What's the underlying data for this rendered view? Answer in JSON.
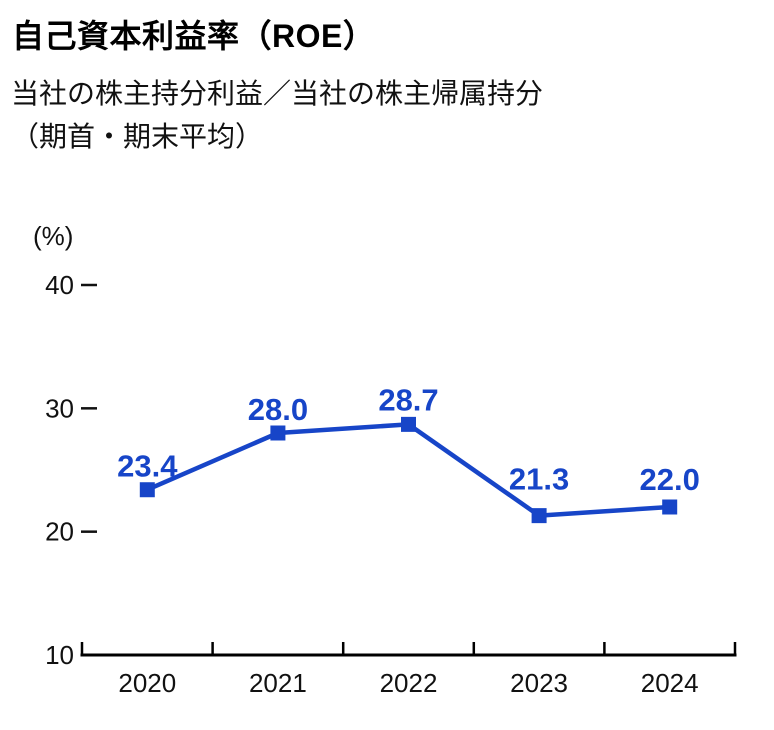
{
  "page": {
    "title": "自己資本利益率（ROE）",
    "subtitle_line1": "当社の株主持分利益／当社の株主帰属持分",
    "subtitle_line2": "（期首・期末平均）"
  },
  "chart_data": {
    "type": "line",
    "title": "自己資本利益率（ROE）",
    "subtitle": "当社の株主持分利益／当社の株主帰属持分（期首・期末平均）",
    "categories": [
      "2020",
      "2021",
      "2022",
      "2023",
      "2024"
    ],
    "series": [
      {
        "name": "ROE",
        "values": [
          23.4,
          28.0,
          28.7,
          21.3,
          22.0
        ]
      }
    ],
    "unit_label": "(%)",
    "xlabel": "",
    "ylabel": "%",
    "y_ticks": [
      10,
      20,
      30,
      40
    ],
    "ylim": [
      10,
      40
    ],
    "grid": false,
    "legend_position": "none",
    "marker": "square",
    "line_color": "#1745c8",
    "axis_color": "#000000",
    "text_color": "#111111",
    "label_offsets_y": [
      -13,
      -13,
      -14,
      -26,
      -17
    ]
  }
}
